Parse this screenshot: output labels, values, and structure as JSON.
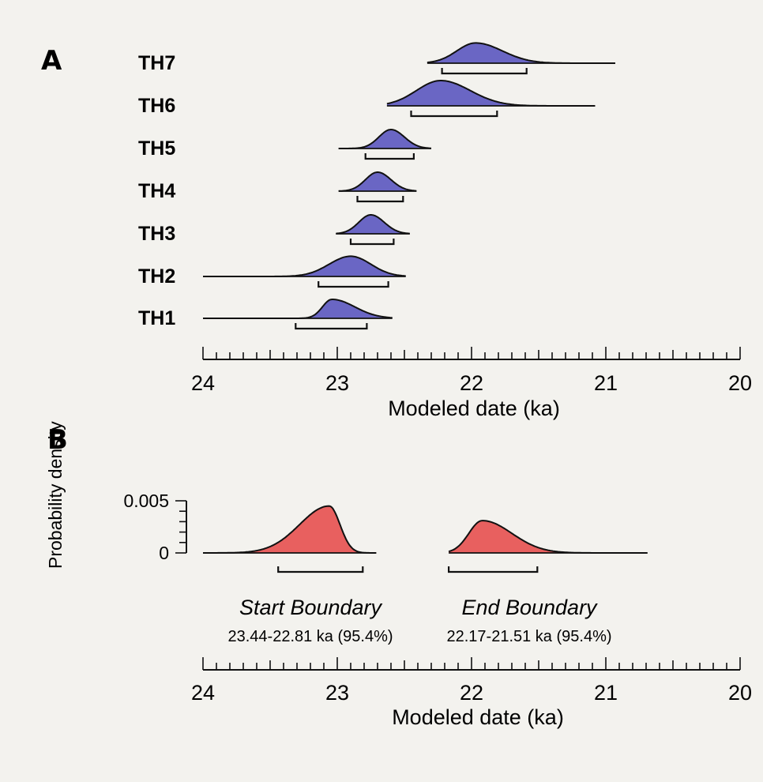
{
  "chart_data": [
    {
      "panel": "A",
      "type": "area",
      "xlabel": "Modeled date (ka)",
      "xlim": [
        24,
        20
      ],
      "x_reversed": true,
      "xticks": [
        24,
        23,
        22,
        21,
        20
      ],
      "fill_color": "#6a66c4",
      "series": [
        {
          "name": "TH7",
          "peak": 21.97,
          "peak_height": 0.32,
          "left_sigma": 0.14,
          "right_sigma": 0.2,
          "range": [
            22.33,
            20.93
          ],
          "interval": [
            22.22,
            21.59
          ]
        },
        {
          "name": "TH6",
          "peak": 22.23,
          "peak_height": 0.4,
          "left_sigma": 0.18,
          "right_sigma": 0.22,
          "range": [
            22.63,
            21.08
          ],
          "interval": [
            22.45,
            21.81
          ]
        },
        {
          "name": "TH5",
          "peak": 22.6,
          "peak_height": 0.3,
          "left_sigma": 0.09,
          "right_sigma": 0.1,
          "range": [
            22.99,
            22.3
          ],
          "interval": [
            22.79,
            22.43
          ]
        },
        {
          "name": "TH4",
          "peak": 22.7,
          "peak_height": 0.3,
          "left_sigma": 0.09,
          "right_sigma": 0.1,
          "range": [
            22.99,
            22.41
          ],
          "interval": [
            22.85,
            22.51
          ]
        },
        {
          "name": "TH3",
          "peak": 22.75,
          "peak_height": 0.3,
          "left_sigma": 0.09,
          "right_sigma": 0.1,
          "range": [
            23.01,
            22.46
          ],
          "interval": [
            22.9,
            22.58
          ]
        },
        {
          "name": "TH2",
          "peak": 22.9,
          "peak_height": 0.32,
          "left_sigma": 0.16,
          "right_sigma": 0.15,
          "range": [
            24.0,
            22.49
          ],
          "interval": [
            23.14,
            22.62
          ]
        },
        {
          "name": "TH1",
          "peak": 23.04,
          "peak_height": 0.3,
          "left_sigma": 0.07,
          "right_sigma": 0.17,
          "range": [
            24.0,
            22.59
          ],
          "interval": [
            23.31,
            22.78
          ]
        }
      ]
    },
    {
      "panel": "B",
      "type": "area",
      "xlabel": "Modeled date (ka)",
      "ylabel": "Probability density",
      "xlim": [
        24,
        20
      ],
      "x_reversed": true,
      "xticks": [
        24,
        23,
        22,
        21,
        20
      ],
      "yticks": [
        0,
        0.005
      ],
      "ytick_labels": [
        "0",
        "0.005"
      ],
      "ylim": [
        0,
        0.005
      ],
      "fill_color": "#e8605f",
      "series": [
        {
          "name": "Start Boundary",
          "peak": 23.06,
          "peak_height": 0.0045,
          "left_sigma": 0.22,
          "right_sigma": 0.08,
          "range": [
            24.0,
            22.71
          ],
          "interval": [
            23.44,
            22.81
          ],
          "range_text": "23.44-22.81 ka (95.4%)"
        },
        {
          "name": "End Boundary",
          "peak": 21.92,
          "peak_height": 0.0031,
          "left_sigma": 0.1,
          "right_sigma": 0.22,
          "range": [
            22.17,
            20.69
          ],
          "interval": [
            22.17,
            21.51
          ],
          "range_text": "22.17-21.51 ka (95.4%)"
        }
      ]
    }
  ]
}
